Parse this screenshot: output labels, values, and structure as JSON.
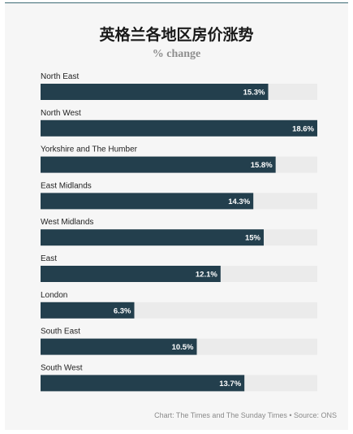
{
  "chart_data": {
    "type": "bar",
    "orientation": "horizontal",
    "title": "英格兰各地区房价涨势",
    "subtitle": "% change",
    "categories": [
      "North East",
      "North West",
      "Yorkshire and The Humber",
      "East Midlands",
      "West Midlands",
      "East",
      "London",
      "South East",
      "South West"
    ],
    "values": [
      15.3,
      18.6,
      15.8,
      14.3,
      15,
      12.1,
      6.3,
      10.5,
      13.7
    ],
    "value_labels": [
      "15.3%",
      "18.6%",
      "15.8%",
      "14.3%",
      "15%",
      "12.1%",
      "6.3%",
      "10.5%",
      "13.7%"
    ],
    "xlim": [
      0,
      18.6
    ],
    "grid": false,
    "colors": {
      "bar": "#233f4d",
      "track": "#ebebeb"
    }
  },
  "footer": "Chart: The Times and The Sunday Times • Source: ONS"
}
